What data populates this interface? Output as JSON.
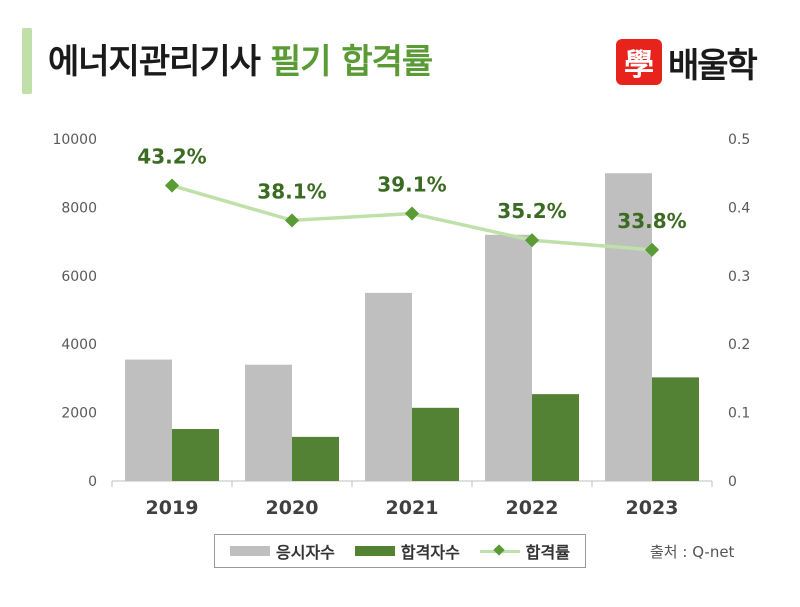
{
  "header": {
    "title_main": "에너지관리기사",
    "title_accent": "필기 합격률"
  },
  "logo": {
    "mark": "學",
    "text": "배울학",
    "color": "#e8231c"
  },
  "source": "출처 : Q-net",
  "chart_data": {
    "type": "bar",
    "categories": [
      "2019",
      "2020",
      "2021",
      "2022",
      "2023"
    ],
    "series": [
      {
        "name": "응시자수",
        "type": "bar",
        "axis": "left",
        "color": "#bfbfbf",
        "values": [
          3550,
          3400,
          5500,
          7200,
          9000
        ]
      },
      {
        "name": "합격자수",
        "type": "bar",
        "axis": "left",
        "color": "#548235",
        "values": [
          1520,
          1290,
          2140,
          2540,
          3030
        ]
      },
      {
        "name": "합격률",
        "type": "line",
        "axis": "right",
        "color": "#bfe0a8",
        "marker_color": "#5a9b36",
        "values": [
          0.432,
          0.381,
          0.391,
          0.352,
          0.338
        ],
        "labels": [
          "43.2%",
          "38.1%",
          "39.1%",
          "35.2%",
          "33.8%"
        ]
      }
    ],
    "y_left": {
      "min": 0,
      "max": 10000,
      "ticks": [
        "0",
        "2000",
        "4000",
        "6000",
        "8000",
        "10000"
      ]
    },
    "y_right": {
      "min": 0,
      "max": 0.5,
      "ticks": [
        "0",
        "0.1",
        "0.2",
        "0.3",
        "0.4",
        "0.5"
      ]
    },
    "grid": false,
    "legend": "bottom"
  }
}
